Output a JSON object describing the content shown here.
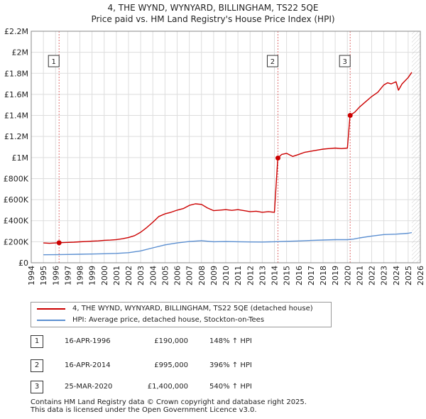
{
  "title": {
    "line1": "4, THE WYND, WYNYARD, BILLINGHAM, TS22 5QE",
    "line2": "Price paid vs. HM Land Registry's House Price Index (HPI)"
  },
  "chart_data": {
    "type": "line",
    "title": "4, THE WYND, WYNYARD, BILLINGHAM, TS22 5QE — Price paid vs. HM Land Registry's House Price Index (HPI)",
    "xlabel": "",
    "ylabel": "",
    "xlim": [
      1994,
      2026
    ],
    "ylim": [
      0,
      2200000
    ],
    "grid": true,
    "x_ticks": [
      "1994",
      "1995",
      "1996",
      "1997",
      "1998",
      "1999",
      "2000",
      "2001",
      "2002",
      "2003",
      "2004",
      "2005",
      "2006",
      "2007",
      "2008",
      "2009",
      "2010",
      "2011",
      "2012",
      "2013",
      "2014",
      "2015",
      "2016",
      "2017",
      "2018",
      "2019",
      "2020",
      "2021",
      "2022",
      "2023",
      "2024",
      "2025",
      "2026"
    ],
    "y_ticks": [
      {
        "value": 0,
        "label": "£0"
      },
      {
        "value": 200000,
        "label": "£200K"
      },
      {
        "value": 400000,
        "label": "£400K"
      },
      {
        "value": 600000,
        "label": "£600K"
      },
      {
        "value": 800000,
        "label": "£800K"
      },
      {
        "value": 1000000,
        "label": "£1M"
      },
      {
        "value": 1200000,
        "label": "£1.2M"
      },
      {
        "value": 1400000,
        "label": "£1.4M"
      },
      {
        "value": 1600000,
        "label": "£1.6M"
      },
      {
        "value": 1800000,
        "label": "£1.8M"
      },
      {
        "value": 2000000,
        "label": "£2M"
      },
      {
        "value": 2200000,
        "label": "£2.2M"
      }
    ],
    "series": [
      {
        "name": "4, THE WYND, WYNYARD, BILLINGHAM, TS22 5QE (detached house)",
        "color": "#cc0000",
        "x": [
          1995.0,
          1995.5,
          1996.29,
          1996.8,
          1997.5,
          1998.0,
          1998.5,
          1999.0,
          1999.5,
          2000.0,
          2000.5,
          2001.0,
          2001.5,
          2002.0,
          2002.5,
          2003.0,
          2003.5,
          2004.0,
          2004.5,
          2005.0,
          2005.5,
          2006.0,
          2006.5,
          2007.0,
          2007.5,
          2008.0,
          2008.5,
          2009.0,
          2009.5,
          2010.0,
          2010.5,
          2011.0,
          2011.5,
          2012.0,
          2012.5,
          2013.0,
          2013.5,
          2014.0,
          2014.28,
          2014.6,
          2015.0,
          2015.5,
          2016.0,
          2016.5,
          2017.0,
          2017.5,
          2018.0,
          2018.5,
          2019.0,
          2019.5,
          2020.0,
          2020.22,
          2020.6,
          2021.0,
          2021.5,
          2022.0,
          2022.5,
          2023.0,
          2023.3,
          2023.6,
          2024.0,
          2024.2,
          2024.5,
          2025.0,
          2025.3
        ],
        "values": [
          188000,
          185000,
          190000,
          193000,
          196000,
          199000,
          202000,
          205000,
          208000,
          213000,
          215000,
          220000,
          228000,
          240000,
          258000,
          290000,
          335000,
          385000,
          440000,
          465000,
          480000,
          500000,
          515000,
          545000,
          560000,
          555000,
          520000,
          495000,
          500000,
          505000,
          498000,
          505000,
          495000,
          485000,
          490000,
          480000,
          485000,
          480000,
          995000,
          1030000,
          1040000,
          1010000,
          1030000,
          1050000,
          1060000,
          1070000,
          1080000,
          1085000,
          1090000,
          1085000,
          1090000,
          1400000,
          1430000,
          1480000,
          1530000,
          1580000,
          1620000,
          1690000,
          1710000,
          1700000,
          1720000,
          1640000,
          1700000,
          1760000,
          1810000
        ]
      },
      {
        "name": "HPI: Average price, detached house, Stockton-on-Tees",
        "color": "#5b8fd1",
        "x": [
          1995.0,
          1996.0,
          1997.0,
          1998.0,
          1999.0,
          2000.0,
          2001.0,
          2002.0,
          2003.0,
          2004.0,
          2005.0,
          2006.0,
          2007.0,
          2008.0,
          2009.0,
          2010.0,
          2011.0,
          2012.0,
          2013.0,
          2014.0,
          2015.0,
          2016.0,
          2017.0,
          2018.0,
          2019.0,
          2020.0,
          2020.5,
          2021.0,
          2022.0,
          2023.0,
          2024.0,
          2025.0,
          2025.3
        ],
        "values": [
          76000,
          77000,
          79000,
          81000,
          83000,
          86000,
          89000,
          96000,
          113000,
          142000,
          170000,
          188000,
          202000,
          210000,
          200000,
          202000,
          200000,
          198000,
          197000,
          200000,
          204000,
          207000,
          212000,
          216000,
          219000,
          219000,
          225000,
          236000,
          254000,
          268000,
          272000,
          280000,
          287000
        ]
      }
    ],
    "sales": [
      {
        "label": "1",
        "x": 1996.29,
        "value": 190000
      },
      {
        "label": "2",
        "x": 2014.29,
        "value": 995000
      },
      {
        "label": "3",
        "x": 2020.23,
        "value": 1400000
      }
    ]
  },
  "legend": {
    "property_label": "4, THE WYND, WYNYARD, BILLINGHAM, TS22 5QE (detached house)",
    "hpi_label": "HPI: Average price, detached house, Stockton-on-Tees",
    "property_color": "#cc0000",
    "hpi_color": "#5b8fd1"
  },
  "sales_table": [
    {
      "num": "1",
      "date": "16-APR-1996",
      "price": "£190,000",
      "hpi": "148% ↑ HPI"
    },
    {
      "num": "2",
      "date": "16-APR-2014",
      "price": "£995,000",
      "hpi": "396% ↑ HPI"
    },
    {
      "num": "3",
      "date": "25-MAR-2020",
      "price": "£1,400,000",
      "hpi": "540% ↑ HPI"
    }
  ],
  "footer": {
    "line1": "Contains HM Land Registry data © Crown copyright and database right 2025.",
    "line2": "This data is licensed under the Open Government Licence v3.0."
  }
}
